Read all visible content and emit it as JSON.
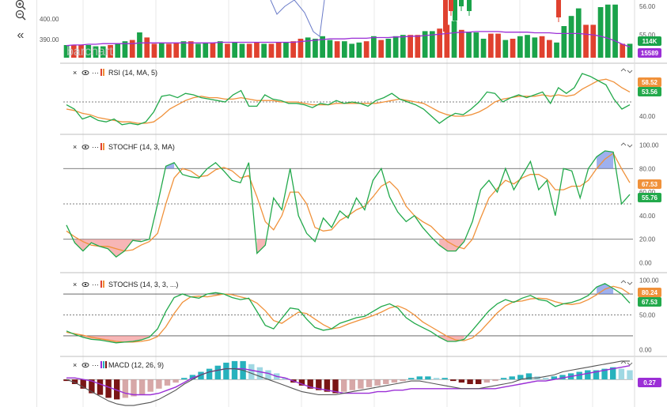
{
  "toolbar": {
    "zoom_in_icon": "zoom-in-icon",
    "zoom_out_icon": "zoom-out-icon",
    "collapse_icon": "double-chevron-left-icon",
    "collapse_glyph": "«"
  },
  "watermark": "barchart",
  "colors": {
    "up": "#1aa34a",
    "down": "#e0412f",
    "green_line": "#22a94b",
    "orange_line": "#f0913a",
    "purple": "#9b2fd6",
    "level": "#555555",
    "macd_hist_pos": "#27b2bd",
    "macd_hist_pos_light": "#9fd8e3",
    "macd_hist_neg": "#7a1515",
    "macd_hist_neg_light": "#d7a8a8",
    "fill_low": "#f07a7a",
    "fill_high": "#4f6fe0",
    "grid": "#e8e8e8"
  },
  "chart_data": [
    {
      "id": "price",
      "type": "bar",
      "label": "Volume",
      "y_ticks": [
        "400.00",
        "390.00"
      ],
      "right_ticks": [
        "56.00",
        "55.00"
      ],
      "badges": [
        {
          "text": "114K",
          "color": "#1aa34a"
        },
        {
          "text": "15589",
          "color": "#9b2fd6"
        }
      ],
      "volume": [
        10,
        10,
        10,
        10,
        9,
        9,
        10,
        11,
        13,
        14,
        20,
        16,
        11,
        12,
        11,
        12,
        13,
        13,
        11,
        12,
        12,
        13,
        11,
        12,
        11,
        11,
        12,
        11,
        11,
        12,
        12,
        13,
        15,
        16,
        15,
        17,
        14,
        13,
        13,
        11,
        12,
        13,
        17,
        14,
        15,
        17,
        18,
        18,
        18,
        21,
        21,
        23,
        26,
        29,
        22,
        20,
        20,
        15,
        19,
        19,
        14,
        15,
        17,
        18,
        16,
        17,
        14,
        12,
        25,
        33,
        39,
        26,
        26,
        40,
        42,
        42,
        11,
        11
      ],
      "vol_up": [
        1,
        0,
        0,
        1,
        1,
        1,
        0,
        1,
        1,
        0,
        1,
        0,
        0,
        1,
        0,
        0,
        1,
        0,
        1,
        1,
        0,
        1,
        0,
        1,
        1,
        0,
        0,
        1,
        0,
        0,
        1,
        0,
        0,
        1,
        1,
        1,
        1,
        0,
        1,
        1,
        1,
        0,
        1,
        0,
        1,
        1,
        1,
        0,
        0,
        1,
        1,
        0,
        0,
        1,
        0,
        1,
        1,
        1,
        0,
        0,
        1,
        0,
        1,
        1,
        1,
        0,
        0,
        1,
        1,
        1,
        1,
        0,
        0,
        1,
        1,
        1,
        0,
        1
      ],
      "ma_line": [
        18,
        19,
        19,
        20,
        20,
        21,
        21,
        21,
        21,
        21,
        22,
        22,
        22,
        22,
        22,
        22,
        22,
        22,
        22,
        22,
        22,
        23,
        23,
        23,
        23,
        23,
        23,
        23,
        23,
        23,
        23,
        23,
        24,
        25,
        26,
        27,
        28,
        28,
        28,
        29,
        29,
        29,
        30,
        30,
        30,
        31,
        31,
        32,
        32,
        33,
        34,
        35,
        36,
        37,
        38,
        38,
        39,
        39,
        39,
        39,
        38,
        38,
        38,
        38,
        37,
        37,
        37,
        36,
        36,
        36,
        36,
        35,
        34,
        32,
        29,
        25,
        20,
        16
      ]
    },
    {
      "id": "rsi",
      "type": "line",
      "label": "RSI (14, MA, 5)",
      "range": [
        30,
        75
      ],
      "ticks": [
        60,
        40
      ],
      "levels": [
        50
      ],
      "badges": [
        {
          "text": "58.52",
          "color": "#f0913a"
        },
        {
          "text": "53.56",
          "color": "#22a94b"
        }
      ],
      "series": [
        {
          "name": "RSI",
          "values": [
            48,
            45,
            38,
            40,
            37,
            36,
            38,
            34,
            35,
            34,
            36,
            43,
            54,
            55,
            53,
            56,
            55,
            53,
            52,
            51,
            50,
            55,
            58,
            47,
            47,
            55,
            52,
            51,
            49,
            49,
            48,
            46,
            49,
            48,
            51,
            49,
            50,
            49,
            47,
            51,
            53,
            56,
            52,
            50,
            48,
            45,
            40,
            35,
            39,
            42,
            41,
            45,
            50,
            57,
            56,
            50,
            53,
            55,
            53,
            55,
            57,
            49,
            60,
            56,
            60,
            70,
            68,
            65,
            62,
            52,
            45,
            48
          ]
        },
        {
          "name": "MA",
          "values": [
            45,
            44,
            42,
            41,
            39,
            38,
            37,
            36,
            36,
            35,
            35,
            36,
            40,
            45,
            48,
            51,
            53,
            54,
            53,
            53,
            52,
            52,
            53,
            52,
            51,
            51,
            51,
            50,
            50,
            50,
            49,
            48,
            48,
            48,
            49,
            49,
            49,
            49,
            49,
            49,
            50,
            51,
            52,
            51,
            50,
            49,
            46,
            43,
            41,
            40,
            40,
            41,
            43,
            46,
            50,
            52,
            53,
            54,
            54,
            54,
            55,
            54,
            55,
            54,
            55,
            59,
            62,
            65,
            66,
            64,
            60,
            57
          ]
        }
      ]
    },
    {
      "id": "stochf",
      "type": "line",
      "label": "STOCHF (14, 3, MA)",
      "range": [
        -5,
        105
      ],
      "ticks": [
        100,
        80,
        60,
        40,
        20,
        0
      ],
      "tick_labels": [
        "100.00",
        "80.00",
        "60.00",
        "40.00",
        "20.00",
        "0.00"
      ],
      "levels": [
        80,
        50,
        20
      ],
      "badges": [
        {
          "text": "67.53",
          "color": "#f0913a"
        },
        {
          "text": "55.76",
          "color": "#22a94b"
        }
      ],
      "series": [
        {
          "name": "%K",
          "values": [
            32,
            17,
            10,
            17,
            14,
            12,
            5,
            10,
            19,
            18,
            20,
            50,
            82,
            85,
            75,
            73,
            72,
            80,
            85,
            78,
            70,
            68,
            85,
            8,
            15,
            55,
            45,
            80,
            40,
            25,
            18,
            38,
            30,
            44,
            38,
            55,
            45,
            70,
            80,
            56,
            43,
            35,
            40,
            30,
            22,
            15,
            10,
            10,
            18,
            35,
            62,
            70,
            60,
            80,
            62,
            74,
            86,
            62,
            70,
            40,
            80,
            78,
            55,
            80,
            90,
            95,
            94,
            50,
            58
          ]
        },
        {
          "name": "%D",
          "values": [
            27,
            22,
            18,
            15,
            14,
            14,
            12,
            10,
            11,
            15,
            18,
            25,
            50,
            72,
            80,
            78,
            73,
            74,
            79,
            81,
            78,
            72,
            74,
            56,
            35,
            28,
            40,
            60,
            60,
            50,
            30,
            27,
            28,
            36,
            40,
            45,
            48,
            56,
            65,
            69,
            62,
            48,
            40,
            35,
            31,
            24,
            18,
            14,
            12,
            20,
            38,
            55,
            63,
            70,
            67,
            72,
            75,
            75,
            71,
            62,
            62,
            65,
            65,
            70,
            80,
            88,
            93,
            80,
            68
          ]
        }
      ]
    },
    {
      "id": "stochs",
      "type": "line",
      "label": "STOCHS (14, 3, 3, ...)",
      "range": [
        -5,
        105
      ],
      "ticks": [
        100,
        50,
        0
      ],
      "tick_labels": [
        "100.00",
        "50.00",
        "0.00"
      ],
      "levels": [
        80,
        50,
        20
      ],
      "badges": [
        {
          "text": "80.24",
          "color": "#f0913a"
        },
        {
          "text": "67.53",
          "color": "#22a94b"
        }
      ],
      "series": [
        {
          "name": "%K",
          "values": [
            27,
            22,
            18,
            15,
            14,
            12,
            10,
            11,
            12,
            14,
            18,
            30,
            55,
            75,
            80,
            76,
            74,
            80,
            82,
            80,
            75,
            72,
            74,
            55,
            35,
            30,
            45,
            60,
            58,
            44,
            32,
            28,
            30,
            38,
            42,
            46,
            48,
            55,
            62,
            66,
            60,
            46,
            38,
            32,
            26,
            18,
            12,
            12,
            15,
            28,
            42,
            56,
            66,
            72,
            68,
            74,
            78,
            72,
            70,
            62,
            66,
            68,
            72,
            78,
            90,
            95,
            88,
            80,
            67
          ]
        },
        {
          "name": "%D",
          "values": [
            25,
            23,
            21,
            18,
            16,
            14,
            12,
            11,
            11,
            12,
            14,
            19,
            33,
            52,
            68,
            76,
            77,
            76,
            78,
            80,
            79,
            76,
            73,
            67,
            56,
            42,
            38,
            46,
            54,
            52,
            44,
            36,
            30,
            32,
            37,
            41,
            45,
            49,
            54,
            60,
            63,
            58,
            50,
            40,
            33,
            26,
            19,
            14,
            13,
            17,
            27,
            40,
            53,
            63,
            69,
            70,
            73,
            74,
            73,
            69,
            66,
            65,
            67,
            72,
            79,
            87,
            91,
            88,
            80
          ]
        }
      ]
    },
    {
      "id": "macd",
      "type": "bar",
      "label": "MACD (12, 26, 9)",
      "range": [
        -1.8,
        1.3
      ],
      "badges": [
        {
          "text": "0.27",
          "color": "#9b2fd6"
        }
      ],
      "histogram": [
        -0.1,
        -0.3,
        -0.6,
        -0.9,
        -1.0,
        -1.2,
        -1.3,
        -1.2,
        -1.1,
        -1.0,
        -0.8,
        -0.6,
        -0.4,
        -0.2,
        0.1,
        0.3,
        0.5,
        0.7,
        0.9,
        1.1,
        1.2,
        1.2,
        1.0,
        0.8,
        0.6,
        0.4,
        0.1,
        -0.2,
        -0.4,
        -0.6,
        -0.7,
        -0.8,
        -0.9,
        -0.8,
        -0.7,
        -0.6,
        -0.5,
        -0.4,
        -0.3,
        -0.2,
        -0.1,
        0.1,
        0.2,
        0.2,
        0.1,
        0.1,
        -0.1,
        -0.2,
        -0.3,
        -0.3,
        -0.2,
        -0.1,
        0.1,
        0.2,
        0.3,
        0.4,
        0.2,
        0.1,
        0.2,
        0.3,
        0.4,
        0.5,
        0.6,
        0.6,
        0.7,
        0.8,
        0.7,
        0.6
      ],
      "series": [
        {
          "name": "MACD",
          "values": [
            0,
            -0.2,
            -0.5,
            -0.8,
            -1.1,
            -1.4,
            -1.6,
            -1.7,
            -1.7,
            -1.6,
            -1.5,
            -1.3,
            -1.0,
            -0.7,
            -0.3,
            0,
            0.3,
            0.5,
            0.6,
            0.7,
            0.7,
            0.6,
            0.4,
            0.2,
            0,
            -0.2,
            -0.4,
            -0.6,
            -0.8,
            -0.9,
            -1.0,
            -1.0,
            -1.0,
            -0.9,
            -0.8,
            -0.7,
            -0.6,
            -0.5,
            -0.4,
            -0.3,
            -0.2,
            -0.1,
            -0.1,
            -0.2,
            -0.3,
            -0.4,
            -0.5,
            -0.6,
            -0.6,
            -0.6,
            -0.5,
            -0.4,
            -0.3,
            -0.2,
            0,
            0.1,
            0.1,
            0.2,
            0.3,
            0.5,
            0.6,
            0.7,
            0.8,
            0.9,
            1.0,
            1.1,
            1.2,
            1.2
          ]
        },
        {
          "name": "Signal",
          "values": [
            0.1,
            0.1,
            0,
            -0.1,
            -0.3,
            -0.5,
            -0.7,
            -0.9,
            -1.0,
            -1.0,
            -1.0,
            -0.9,
            -0.7,
            -0.5,
            -0.2,
            0.1,
            0.3,
            0.5,
            0.6,
            0.7,
            0.7,
            0.7,
            0.6,
            0.5,
            0.4,
            0.2,
            0.1,
            -0.1,
            -0.3,
            -0.5,
            -0.6,
            -0.7,
            -0.8,
            -0.9,
            -0.9,
            -0.9,
            -0.9,
            -0.8,
            -0.8,
            -0.7,
            -0.7,
            -0.6,
            -0.6,
            -0.6,
            -0.6,
            -0.6,
            -0.6,
            -0.6,
            -0.6,
            -0.6,
            -0.6,
            -0.6,
            -0.5,
            -0.4,
            -0.3,
            -0.2,
            -0.1,
            -0.1,
            0,
            0.1,
            0.2,
            0.3,
            0.4,
            0.5,
            0.6,
            0.7,
            0.8,
            0.9
          ]
        }
      ]
    }
  ]
}
